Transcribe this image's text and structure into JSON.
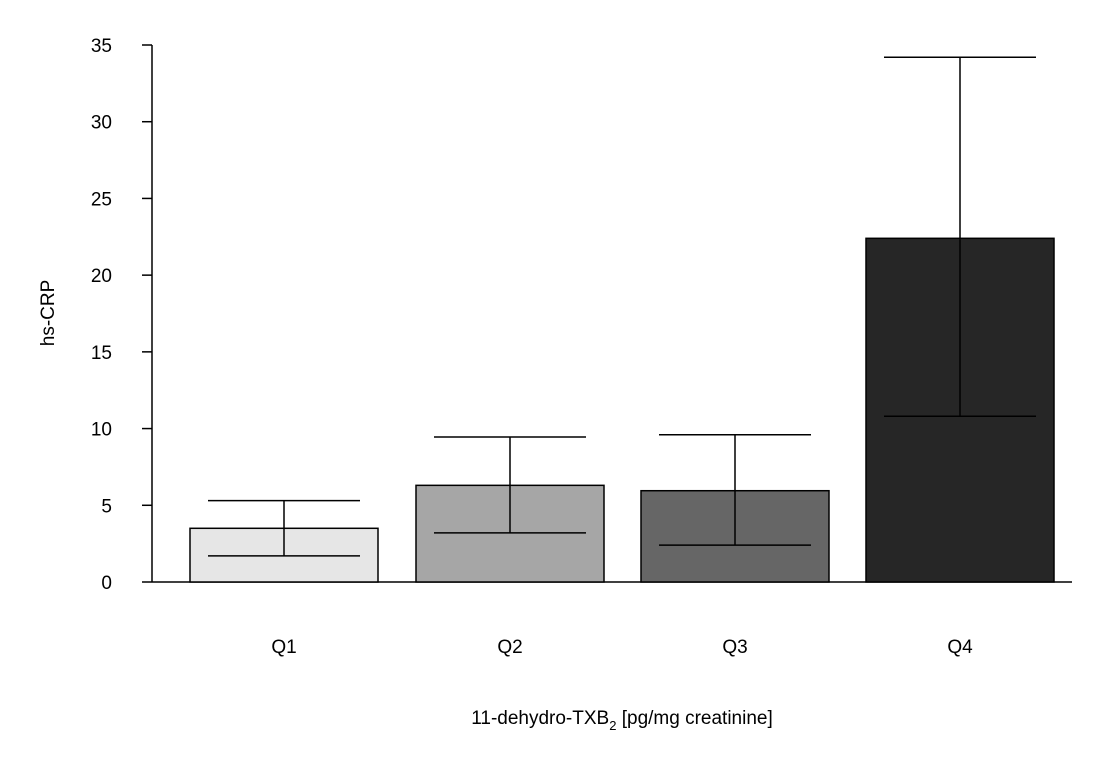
{
  "chart_data": {
    "type": "bar",
    "categories": [
      "Q1",
      "Q2",
      "Q3",
      "Q4"
    ],
    "values": [
      3.5,
      6.3,
      5.95,
      22.4
    ],
    "error_bars": {
      "lower": [
        1.7,
        3.2,
        2.4,
        10.8
      ],
      "upper": [
        5.3,
        9.45,
        9.6,
        34.2
      ]
    },
    "bar_colors": [
      "#e6e6e6",
      "#a6a6a6",
      "#666666",
      "#262626"
    ],
    "xlabel": {
      "main": "11-dehydro-TXB",
      "sub": "2",
      "suffix": " [pg/mg creatinine]"
    },
    "ylabel": "hs-CRP",
    "ylim": [
      0,
      35
    ],
    "yticks": [
      0,
      5,
      10,
      15,
      20,
      25,
      30,
      35
    ],
    "grid": false,
    "legend": "none"
  }
}
